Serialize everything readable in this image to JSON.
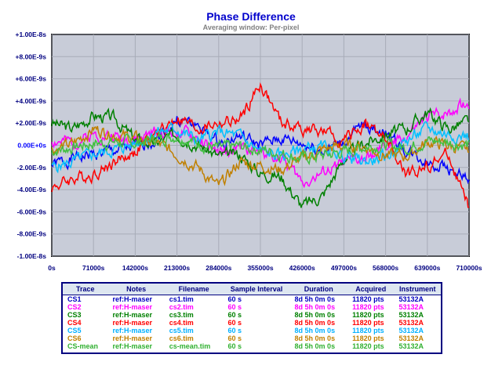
{
  "header": {
    "title": "Phase Difference",
    "subtitle": "Averaging window: Per-pixel"
  },
  "chart_data": {
    "type": "line",
    "title": "Phase Difference",
    "subtitle": "Averaging window: Per-pixel",
    "xlim": [
      0,
      710000
    ],
    "ylim": [
      -1e-08,
      1e-08
    ],
    "x_ticks": [
      "0s",
      "71000s",
      "142000s",
      "213000s",
      "284000s",
      "355000s",
      "426000s",
      "497000s",
      "568000s",
      "639000s",
      "710000s"
    ],
    "y_ticks": [
      "+1.00E-8s",
      "+8.00E-9s",
      "+6.00E-9s",
      "+4.00E-9s",
      "+2.00E-9s",
      "0.00E+0s",
      "-2.00E-9s",
      "-4.00E-9s",
      "-6.00E-9s",
      "-8.00E-9s",
      "-1.00E-8s"
    ],
    "grid": true,
    "plot_background": "#c8ccd8",
    "x_sample": [
      0,
      35500,
      71000,
      106500,
      142000,
      177500,
      213000,
      248500,
      284000,
      319500,
      355000,
      390500,
      426000,
      461500,
      497000,
      532500,
      568000,
      603500,
      639000,
      674500,
      710000
    ],
    "series": [
      {
        "name": "CS1",
        "color": "#0000ff",
        "values": [
          -1.8e-09,
          -1.2e-09,
          -8e-10,
          -5e-10,
          -2e-10,
          6e-10,
          2.3e-09,
          1.8e-09,
          2e-10,
          8e-10,
          0.0,
          6e-10,
          1e-10,
          -5e-10,
          3e-10,
          1.8e-09,
          1.2e-09,
          -6e-10,
          -1.5e-09,
          -2e-09,
          -3.2e-09
        ]
      },
      {
        "name": "CS2",
        "color": "#ff00ff",
        "values": [
          4e-10,
          2e-10,
          1e-09,
          8e-10,
          5e-10,
          1.2e-09,
          1.3e-09,
          6e-10,
          -8e-10,
          -3e-10,
          -6e-10,
          -1.1e-09,
          -3.3e-09,
          -2.6e-09,
          -1.5e-09,
          -1.3e-09,
          -2e-10,
          8e-10,
          2.5e-09,
          3.1e-09,
          3.8e-09
        ]
      },
      {
        "name": "CS3",
        "color": "#008000",
        "values": [
          2e-09,
          1.5e-09,
          2.7e-09,
          2.4e-09,
          5e-10,
          2e-10,
          1e-09,
          1e-10,
          -1e-09,
          -8e-10,
          -2.5e-09,
          -2.8e-09,
          -5.5e-09,
          -4.5e-09,
          -1.2e-09,
          2e-10,
          1e-09,
          1.5e-09,
          3e-09,
          1.5e-09,
          2.2e-09
        ]
      },
      {
        "name": "CS4",
        "color": "#ff0000",
        "values": [
          -3.8e-09,
          -3e-09,
          -2.6e-09,
          -1.5e-09,
          -6e-10,
          1e-09,
          2.5e-09,
          1.5e-09,
          2e-09,
          2.2e-09,
          5.5e-09,
          2e-09,
          1.5e-09,
          1.2e-09,
          3e-10,
          2e-09,
          5e-10,
          -2.8e-09,
          -1.8e-09,
          -8e-10,
          -5.8e-09
        ]
      },
      {
        "name": "CS5",
        "color": "#00c0ff",
        "values": [
          -2e-09,
          -1.5e-09,
          -8e-10,
          -4e-10,
          2e-10,
          1.2e-09,
          1.5e-09,
          4e-10,
          1.2e-09,
          8e-10,
          -6e-10,
          -1e-09,
          -3e-10,
          -2e-10,
          -9e-10,
          -1.5e-09,
          -1.1e-09,
          4e-10,
          1.5e-09,
          1e-09,
          8e-10
        ]
      },
      {
        "name": "CS6",
        "color": "#c08000",
        "values": [
          -4e-10,
          1e-10,
          1.5e-09,
          1e-09,
          6e-10,
          2e-10,
          -8e-10,
          -2e-09,
          -3.8e-09,
          -1.5e-09,
          -1.8e-09,
          -2.2e-09,
          -1.2e-09,
          -4e-10,
          0.0,
          -1e-10,
          -9e-10,
          -1e-09,
          3e-10,
          0.0,
          -5e-10
        ]
      },
      {
        "name": "CS-mean",
        "color": "#40c040",
        "values": [
          -5e-10,
          -2e-10,
          2e-10,
          3e-10,
          2e-10,
          6e-10,
          9e-10,
          2e-10,
          -3e-10,
          -1e-10,
          -4e-10,
          -7e-10,
          -1.2e-09,
          -9e-10,
          -6e-10,
          -1e-10,
          0.0,
          -2e-10,
          4e-10,
          3e-10,
          0.0
        ]
      }
    ]
  },
  "legend": {
    "headers": [
      "Trace",
      "Notes",
      "Filename",
      "Sample Interval",
      "Duration",
      "Acquired",
      "Instrument"
    ],
    "rows": [
      {
        "trace": "CS1",
        "notes": "ref:H-maser",
        "filename": "cs1.tim",
        "interval": "60 s",
        "duration": "8d 5h 0m 0s",
        "acquired": "11820 pts",
        "instrument": "53132A",
        "color": "#0000c0"
      },
      {
        "trace": "CS2",
        "notes": "ref:H-maser",
        "filename": "cs2.tim",
        "interval": "60 s",
        "duration": "8d 5h 0m 0s",
        "acquired": "11820 pts",
        "instrument": "53132A",
        "color": "#ff00ff"
      },
      {
        "trace": "CS3",
        "notes": "ref:H-maser",
        "filename": "cs3.tim",
        "interval": "60 s",
        "duration": "8d 5h 0m 0s",
        "acquired": "11820 pts",
        "instrument": "53132A",
        "color": "#008000"
      },
      {
        "trace": "CS4",
        "notes": "ref:H-maser",
        "filename": "cs4.tim",
        "interval": "60 s",
        "duration": "8d 5h 0m 0s",
        "acquired": "11820 pts",
        "instrument": "53132A",
        "color": "#ff0000"
      },
      {
        "trace": "CS5",
        "notes": "ref:H-maser",
        "filename": "cs5.tim",
        "interval": "60 s",
        "duration": "8d 5h 0m 0s",
        "acquired": "11820 pts",
        "instrument": "53132A",
        "color": "#00b0ff"
      },
      {
        "trace": "CS6",
        "notes": "ref:H-maser",
        "filename": "cs6.tim",
        "interval": "60 s",
        "duration": "8d 5h 0m 0s",
        "acquired": "11820 pts",
        "instrument": "53132A",
        "color": "#c08000"
      },
      {
        "trace": "CS-mean",
        "notes": "ref:H-maser",
        "filename": "cs-mean.tim",
        "interval": "60 s",
        "duration": "8d 5h 0m 0s",
        "acquired": "11820 pts",
        "instrument": "53132A",
        "color": "#30b030"
      }
    ]
  }
}
